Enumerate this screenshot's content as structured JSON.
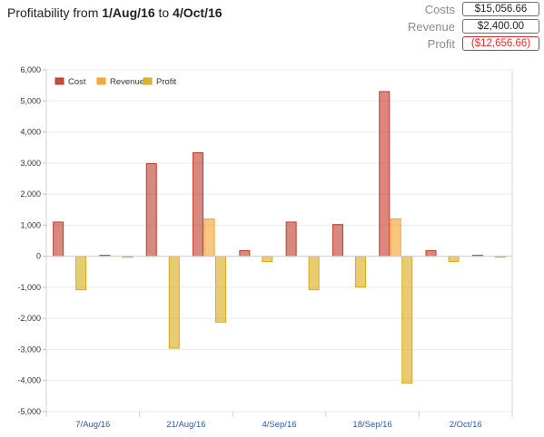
{
  "header": {
    "title_prefix": "Profitability from ",
    "date_from": "1/Aug/16",
    "title_mid": " to ",
    "date_to": "4/Oct/16"
  },
  "summary": {
    "costs_label": "Costs",
    "costs_value": "$15,056.66",
    "revenue_label": "Revenue",
    "revenue_value": "$2,400.00",
    "profit_label": "Profit",
    "profit_value": "($12,656.66)"
  },
  "colors": {
    "cost": "#c0392b",
    "revenue": "#f5a02a",
    "profit": "#dba818",
    "negative_text": "#d9302c",
    "axis_label": "#2a5aa8"
  },
  "chart_data": {
    "type": "bar",
    "legend": [
      "Cost",
      "Revenue",
      "Profit"
    ],
    "legend_position": "top-left",
    "ylim": [
      -5000,
      6000
    ],
    "yticks": [
      "-5,000",
      "-4,000",
      "-3,000",
      "-2,000",
      "-1,000",
      "0",
      "1,000",
      "2,000",
      "3,000",
      "4,000",
      "5,000",
      "6,000"
    ],
    "ytick_values": [
      -5000,
      -4000,
      -3000,
      -2000,
      -1000,
      0,
      1000,
      2000,
      3000,
      4000,
      5000,
      6000
    ],
    "grid": true,
    "xtick_labels": [
      "7/Aug/16",
      "21/Aug/16",
      "4/Sep/16",
      "18/Sep/16",
      "2/Oct/16"
    ],
    "groups": 10,
    "series": [
      {
        "name": "Cost",
        "values": [
          1100,
          30,
          2980,
          3330,
          180,
          1100,
          1020,
          5300,
          180,
          30
        ]
      },
      {
        "name": "Revenue",
        "values": [
          0,
          0,
          0,
          1200,
          0,
          0,
          0,
          1200,
          0,
          0
        ]
      },
      {
        "name": "Profit",
        "values": [
          -1080,
          -30,
          -2960,
          -2120,
          -170,
          -1080,
          -990,
          -4080,
          -170,
          -20
        ]
      }
    ]
  }
}
